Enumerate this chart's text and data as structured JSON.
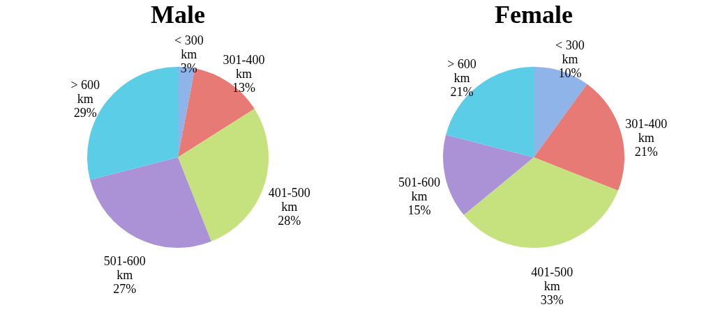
{
  "chart_data": [
    {
      "type": "pie",
      "title": "Male",
      "categories": [
        "< 300 km",
        "301-400 km",
        "401-500 km",
        "501-600 km",
        "> 600 km"
      ],
      "values": [
        3,
        13,
        28,
        27,
        29
      ],
      "value_labels": [
        "3%",
        "13%",
        "28%",
        "27%",
        "29%"
      ],
      "colors": [
        "#8fb4ea",
        "#e77a74",
        "#c5e27e",
        "#ab92d6",
        "#5ccde6"
      ],
      "legend": false
    },
    {
      "type": "pie",
      "title": "Female",
      "categories": [
        "< 300 km",
        "301-400 km",
        "401-500 km",
        "501-600 km",
        "> 600 km"
      ],
      "values": [
        10,
        21,
        33,
        15,
        21
      ],
      "value_labels": [
        "10%",
        "21%",
        "33%",
        "15%",
        "21%"
      ],
      "colors": [
        "#8fb4ea",
        "#e77a74",
        "#c5e27e",
        "#ab92d6",
        "#5ccde6"
      ],
      "legend": false
    }
  ]
}
